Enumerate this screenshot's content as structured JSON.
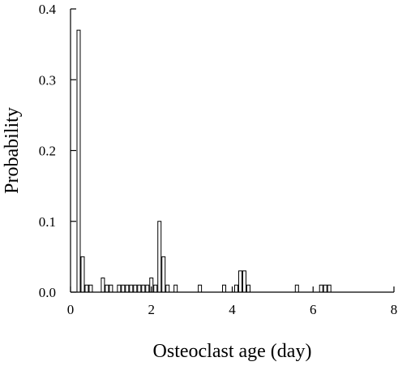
{
  "chart_data": {
    "type": "bar",
    "title": "",
    "xlabel": "Osteoclast age (day)",
    "ylabel": "Probability",
    "xlim": [
      0,
      8
    ],
    "ylim": [
      0,
      0.4
    ],
    "bin_width": 0.1,
    "xticks": [
      0,
      2,
      4,
      6,
      8
    ],
    "xtick_labels": [
      "0",
      "2",
      "4",
      "6",
      "8"
    ],
    "yticks": [
      0,
      0.1,
      0.2,
      0.3,
      0.4
    ],
    "ytick_labels": [
      "0.0",
      "0.1",
      "0.2",
      "0.3",
      "0.4"
    ],
    "grid": false,
    "legend": "none",
    "colors": {
      "bar_fill": "#ffffff",
      "bar_stroke": "#000000",
      "axis": "#000000"
    },
    "x": [
      0.2,
      0.3,
      0.4,
      0.5,
      0.8,
      0.9,
      1.0,
      1.2,
      1.3,
      1.4,
      1.5,
      1.6,
      1.7,
      1.8,
      1.9,
      2.0,
      2.1,
      2.2,
      2.3,
      2.4,
      2.6,
      3.2,
      3.8,
      4.1,
      4.2,
      4.3,
      4.4,
      5.6,
      6.2,
      6.3,
      6.4
    ],
    "values": [
      0.37,
      0.05,
      0.01,
      0.01,
      0.02,
      0.01,
      0.01,
      0.01,
      0.01,
      0.01,
      0.01,
      0.01,
      0.01,
      0.01,
      0.01,
      0.02,
      0.01,
      0.1,
      0.05,
      0.01,
      0.01,
      0.01,
      0.01,
      0.01,
      0.03,
      0.03,
      0.01,
      0.01,
      0.01,
      0.01,
      0.01
    ]
  }
}
